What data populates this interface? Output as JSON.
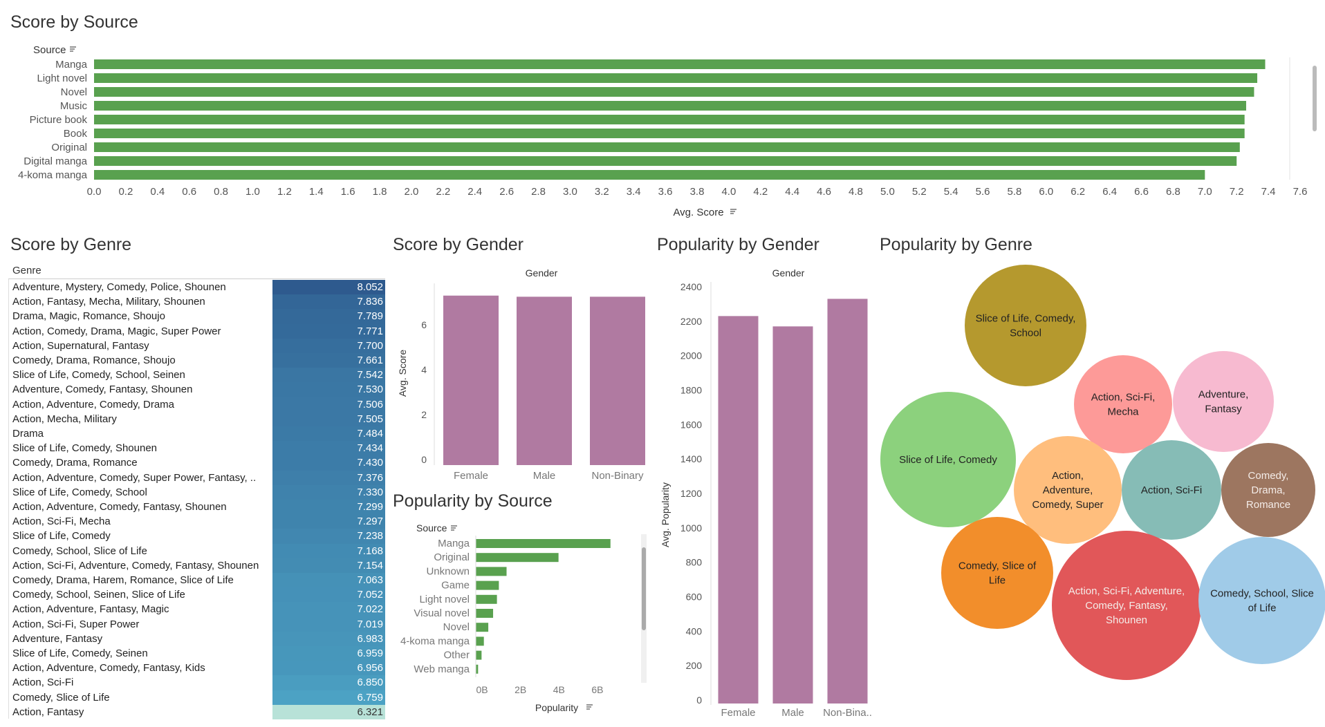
{
  "titles": {
    "score_by_source": "Score by Source",
    "score_by_genre": "Score by Genre",
    "score_by_gender": "Score by Gender",
    "popularity_by_gender": "Popularity by Gender",
    "popularity_by_genre": "Popularity by Genre",
    "popularity_by_source": "Popularity by Source"
  },
  "colors": {
    "green_bar": "#59a14f",
    "purple_bar": "#b07aa1",
    "heat_dark": "#2e5a8e",
    "heat_light": "#b8e2d8"
  },
  "chart_data": [
    {
      "id": "score_by_source",
      "type": "bar",
      "orientation": "horizontal",
      "title": "Score by Source",
      "ylabel": "Source",
      "xlabel": "Avg. Score",
      "categories": [
        "Manga",
        "Light novel",
        "Novel",
        "Music",
        "Picture book",
        "Book",
        "Original",
        "Digital manga",
        "4-koma manga"
      ],
      "values": [
        7.38,
        7.33,
        7.31,
        7.26,
        7.25,
        7.25,
        7.22,
        7.2,
        7.0
      ],
      "xlim": [
        0,
        7.6
      ],
      "xticks": [
        "0.0",
        "0.2",
        "0.4",
        "0.6",
        "0.8",
        "1.0",
        "1.2",
        "1.4",
        "1.6",
        "1.8",
        "2.0",
        "2.2",
        "2.4",
        "2.6",
        "2.8",
        "3.0",
        "3.2",
        "3.4",
        "3.6",
        "3.8",
        "4.0",
        "4.2",
        "4.4",
        "4.6",
        "4.8",
        "5.0",
        "5.2",
        "5.4",
        "5.6",
        "5.8",
        "6.0",
        "6.2",
        "6.4",
        "6.6",
        "6.8",
        "7.0",
        "7.2",
        "7.4",
        "7.6"
      ]
    },
    {
      "id": "score_by_genre",
      "type": "table",
      "title": "Score by Genre",
      "column_header": "Genre",
      "rows": [
        {
          "genre": "Adventure, Mystery, Comedy, Police, Shounen",
          "value": "8.052"
        },
        {
          "genre": "Action, Fantasy, Mecha, Military, Shounen",
          "value": "7.836"
        },
        {
          "genre": "Drama, Magic, Romance, Shoujo",
          "value": "7.789"
        },
        {
          "genre": "Action, Comedy, Drama, Magic, Super Power",
          "value": "7.771"
        },
        {
          "genre": "Action, Supernatural, Fantasy",
          "value": "7.700"
        },
        {
          "genre": "Comedy, Drama, Romance, Shoujo",
          "value": "7.661"
        },
        {
          "genre": "Slice of Life, Comedy, School, Seinen",
          "value": "7.542"
        },
        {
          "genre": "Adventure, Comedy, Fantasy, Shounen",
          "value": "7.530"
        },
        {
          "genre": "Action, Adventure, Comedy, Drama",
          "value": "7.506"
        },
        {
          "genre": "Action, Mecha, Military",
          "value": "7.505"
        },
        {
          "genre": "Drama",
          "value": "7.484"
        },
        {
          "genre": "Slice of Life, Comedy, Shounen",
          "value": "7.434"
        },
        {
          "genre": "Comedy, Drama, Romance",
          "value": "7.430"
        },
        {
          "genre": "Action, Adventure, Comedy, Super Power, Fantasy, ..",
          "value": "7.376"
        },
        {
          "genre": "Slice of Life, Comedy, School",
          "value": "7.330"
        },
        {
          "genre": "Action, Adventure, Comedy, Fantasy, Shounen",
          "value": "7.299"
        },
        {
          "genre": "Action, Sci-Fi, Mecha",
          "value": "7.297"
        },
        {
          "genre": "Slice of Life, Comedy",
          "value": "7.238"
        },
        {
          "genre": "Comedy, School, Slice of Life",
          "value": "7.168"
        },
        {
          "genre": "Action, Sci-Fi, Adventure, Comedy, Fantasy, Shounen",
          "value": "7.154"
        },
        {
          "genre": "Comedy, Drama, Harem, Romance, Slice of Life",
          "value": "7.063"
        },
        {
          "genre": "Comedy, School, Seinen, Slice of Life",
          "value": "7.052"
        },
        {
          "genre": "Action, Adventure, Fantasy, Magic",
          "value": "7.022"
        },
        {
          "genre": "Action, Sci-Fi, Super Power",
          "value": "7.019"
        },
        {
          "genre": "Adventure, Fantasy",
          "value": "6.983"
        },
        {
          "genre": "Slice of Life, Comedy, Seinen",
          "value": "6.959"
        },
        {
          "genre": "Action, Adventure, Comedy, Fantasy, Kids",
          "value": "6.956"
        },
        {
          "genre": "Action, Sci-Fi",
          "value": "6.850"
        },
        {
          "genre": "Comedy, Slice of Life",
          "value": "6.759"
        },
        {
          "genre": "Action, Fantasy",
          "value": "6.321"
        }
      ]
    },
    {
      "id": "score_by_gender",
      "type": "bar",
      "title": "Score by Gender",
      "header": "Gender",
      "ylabel": "Avg. Score",
      "categories": [
        "Female",
        "Male",
        "Non-Binary"
      ],
      "values": [
        7.3,
        7.25,
        7.25
      ],
      "ylim": [
        0,
        7.6
      ],
      "yticks": [
        "0",
        "2",
        "4",
        "6"
      ]
    },
    {
      "id": "popularity_by_gender",
      "type": "bar",
      "title": "Popularity by Gender",
      "header": "Gender",
      "ylabel": "Avg. Popularity",
      "categories": [
        "Female",
        "Male",
        "Non-Bina.."
      ],
      "values": [
        2230,
        2170,
        2330
      ],
      "ylim": [
        0,
        2400
      ],
      "yticks": [
        "0",
        "200",
        "400",
        "600",
        "800",
        "1000",
        "1200",
        "1400",
        "1600",
        "1800",
        "2000",
        "2200",
        "2400"
      ]
    },
    {
      "id": "popularity_by_source",
      "type": "bar",
      "orientation": "horizontal",
      "title": "Popularity by Source",
      "ylabel": "Source",
      "xlabel": "Popularity",
      "categories": [
        "Manga",
        "Original",
        "Unknown",
        "Game",
        "Light novel",
        "Visual novel",
        "Novel",
        "4-koma manga",
        "Other",
        "Web manga"
      ],
      "values": [
        7.0,
        4.3,
        1.6,
        1.2,
        1.1,
        0.9,
        0.65,
        0.42,
        0.3,
        0.12
      ],
      "xlim": [
        0,
        7.8
      ],
      "xticks": [
        "0B",
        "2B",
        "4B",
        "6B"
      ]
    },
    {
      "id": "popularity_by_genre",
      "type": "bubble",
      "title": "Popularity by Genre",
      "bubbles": [
        {
          "label": "Slice of Life, Comedy, School",
          "color": "#b5992e"
        },
        {
          "label": "Action, Sci-Fi, Mecha",
          "color": "#fd9a98"
        },
        {
          "label": "Adventure, Fantasy",
          "color": "#f7bad0"
        },
        {
          "label": "Slice of Life, Comedy",
          "color": "#8cd17d"
        },
        {
          "label": "Action, Adventure, Comedy, Super",
          "color": "#ffbe7d"
        },
        {
          "label": "Action, Sci-Fi",
          "color": "#86bcb6"
        },
        {
          "label": "Comedy, Drama, Romance",
          "color": "#9d7660"
        },
        {
          "label": "Comedy, Slice of Life",
          "color": "#f28e2b"
        },
        {
          "label": "Action, Sci-Fi, Adventure, Comedy, Fantasy, Shounen",
          "color": "#e15759"
        },
        {
          "label": "Comedy, School, Slice of Life",
          "color": "#a0cbe8"
        }
      ]
    }
  ]
}
